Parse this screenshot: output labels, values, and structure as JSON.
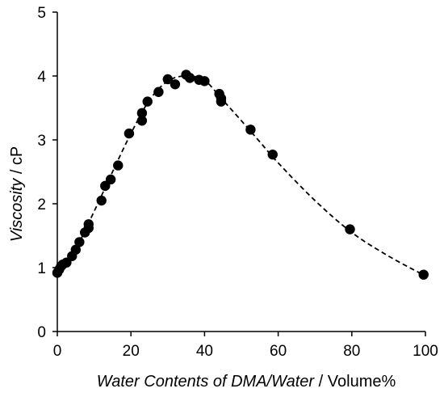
{
  "chart_data": {
    "type": "scatter",
    "title": "",
    "xlabel_italic": "Water Contents of DMA/Water",
    "xlabel_unit": " / Volume%",
    "ylabel_italic": "Viscosity",
    "ylabel_unit": " / cP",
    "xlim": [
      0,
      100
    ],
    "ylim": [
      0,
      5
    ],
    "xticks": [
      "0",
      "20",
      "40",
      "60",
      "80",
      "100"
    ],
    "yticks": [
      "0",
      "1",
      "2",
      "3",
      "4",
      "5"
    ],
    "grid": false,
    "legend": "none",
    "series": [
      {
        "marker": "filled-circle",
        "color": "#000000",
        "points": [
          [
            0,
            0.92
          ],
          [
            0.5,
            0.97
          ],
          [
            1.0,
            1.02
          ],
          [
            1.5,
            1.05
          ],
          [
            2.5,
            1.08
          ],
          [
            4.0,
            1.18
          ],
          [
            5.0,
            1.28
          ],
          [
            6.0,
            1.4
          ],
          [
            7.5,
            1.55
          ],
          [
            8.5,
            1.62
          ],
          [
            8.5,
            1.68
          ],
          [
            12.0,
            2.05
          ],
          [
            13.0,
            2.28
          ],
          [
            14.5,
            2.38
          ],
          [
            16.5,
            2.6
          ],
          [
            19.5,
            3.1
          ],
          [
            23.0,
            3.3
          ],
          [
            23.0,
            3.42
          ],
          [
            24.5,
            3.6
          ],
          [
            27.5,
            3.75
          ],
          [
            30.0,
            3.95
          ],
          [
            32.0,
            3.87
          ],
          [
            35.0,
            4.02
          ],
          [
            36.0,
            3.97
          ],
          [
            38.5,
            3.94
          ],
          [
            40.0,
            3.92
          ],
          [
            44.0,
            3.72
          ],
          [
            44.5,
            3.65
          ],
          [
            44.5,
            3.6
          ],
          [
            52.5,
            3.16
          ],
          [
            58.5,
            2.77
          ],
          [
            79.5,
            1.6
          ],
          [
            99.5,
            0.89
          ]
        ]
      },
      {
        "style": "dashed-line",
        "color": "#000000",
        "points": [
          [
            0,
            0.92
          ],
          [
            5,
            1.3
          ],
          [
            10,
            1.88
          ],
          [
            15,
            2.5
          ],
          [
            20,
            3.1
          ],
          [
            25,
            3.62
          ],
          [
            30,
            3.92
          ],
          [
            35,
            4.0
          ],
          [
            40,
            3.93
          ],
          [
            45,
            3.62
          ],
          [
            50,
            3.3
          ],
          [
            55,
            2.97
          ],
          [
            60,
            2.64
          ],
          [
            70,
            2.05
          ],
          [
            80,
            1.55
          ],
          [
            90,
            1.18
          ],
          [
            100,
            0.87
          ]
        ]
      }
    ]
  }
}
